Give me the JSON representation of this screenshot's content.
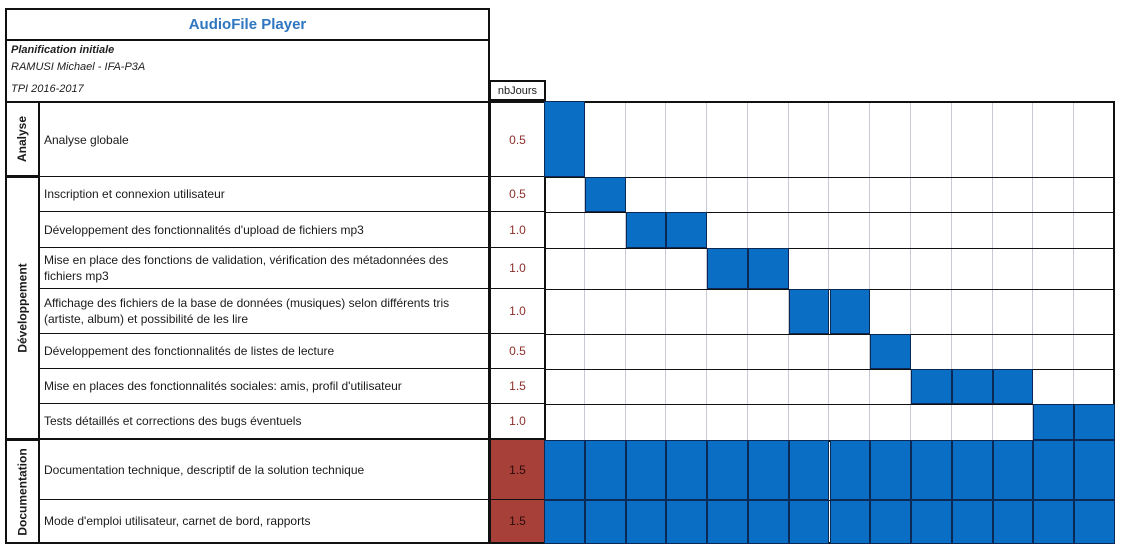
{
  "title": "AudioFile Player",
  "info": {
    "line1": "Planification initiale",
    "line2": "RAMUSI Michael - IFA-P3A",
    "line3": "TPI 2016-2017"
  },
  "nb_header": "nbJours",
  "sections": [
    {
      "label": "Analyse"
    },
    {
      "label": "Développement"
    },
    {
      "label": "Documentation"
    }
  ],
  "tasks": [
    {
      "label": "Analyse globale",
      "days": "0.5",
      "start": 0,
      "span": 1
    },
    {
      "label": "Inscription et connexion utilisateur",
      "days": "0.5",
      "start": 1,
      "span": 1
    },
    {
      "label": "Développement des fonctionnalités d'upload de fichiers mp3",
      "days": "1.0",
      "start": 2,
      "span": 2
    },
    {
      "label": "Mise en place des fonctions de validation, vérification des métadonnées des fichiers mp3",
      "days": "1.0",
      "start": 4,
      "span": 2
    },
    {
      "label": "Affichage des fichiers de la base de données (musiques) selon différents tris (artiste, album) et possibilité de les lire",
      "days": "1.0",
      "start": 6,
      "span": 2
    },
    {
      "label": "Développement des fonctionnalités de listes de lecture",
      "days": "0.5",
      "start": 8,
      "span": 1
    },
    {
      "label": "Mise en places des fonctionnalités sociales: amis, profil d'utilisateur",
      "days": "1.5",
      "start": 9,
      "span": 3
    },
    {
      "label": "Tests détaillés et corrections des bugs éventuels",
      "days": "1.0",
      "start": 12,
      "span": 2
    },
    {
      "label": "Documentation technique, descriptif de la solution technique",
      "days": "1.5",
      "start": 0,
      "span": 14
    },
    {
      "label": "Mode d'emploi utilisateur, carnet de bord, rapports",
      "days": "1.5",
      "start": 0,
      "span": 14
    }
  ],
  "colors": {
    "bar": "#0a6fc4",
    "title": "#2f75c0",
    "highlight": "#a8403a"
  }
}
